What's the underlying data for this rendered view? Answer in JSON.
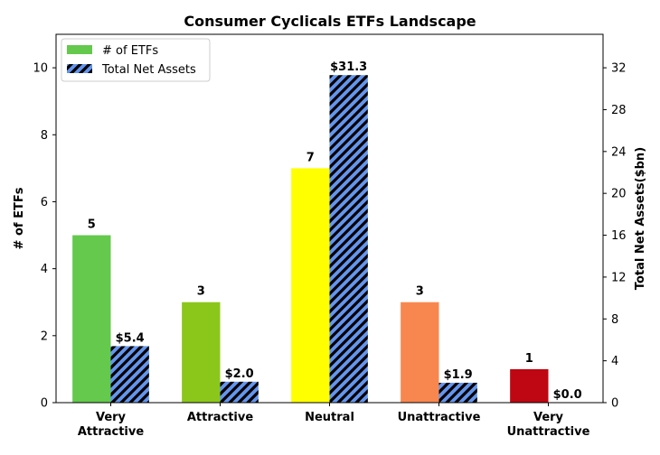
{
  "chart_data": {
    "type": "bar",
    "title": "Consumer Cyclicals ETFs Landscape",
    "categories": [
      [
        "Very",
        "Attractive"
      ],
      [
        "Attractive"
      ],
      [
        "Neutral"
      ],
      [
        "Unattractive"
      ],
      [
        "Very",
        "Unattractive"
      ]
    ],
    "series": [
      {
        "name": "# of ETFs",
        "axis": "left",
        "values": [
          5,
          3,
          7,
          3,
          1
        ],
        "labels": [
          "5",
          "3",
          "7",
          "3",
          "1"
        ],
        "colors": [
          "#64c94d",
          "#8bc71a",
          "#ffff00",
          "#f8874f",
          "#be0712"
        ]
      },
      {
        "name": "Total Net Assets",
        "axis": "right",
        "values": [
          5.4,
          2.0,
          31.3,
          1.9,
          0.0
        ],
        "labels": [
          "$5.4",
          "$2.0",
          "$31.3",
          "$1.9",
          "$0.0"
        ],
        "color": "#6495ed",
        "hatch": "diagonal"
      }
    ],
    "ylabel_left": "# of ETFs",
    "ylabel_right": "Total Net Assets($bn)",
    "ylim_left": [
      0,
      11
    ],
    "ylim_right": [
      0,
      35.2
    ],
    "yticks_left": [
      "0",
      "2",
      "4",
      "6",
      "8",
      "10"
    ],
    "yticks_right": [
      "0",
      "4",
      "8",
      "12",
      "16",
      "20",
      "24",
      "28",
      "32"
    ],
    "legend_position": "upper-left",
    "grid": false
  }
}
